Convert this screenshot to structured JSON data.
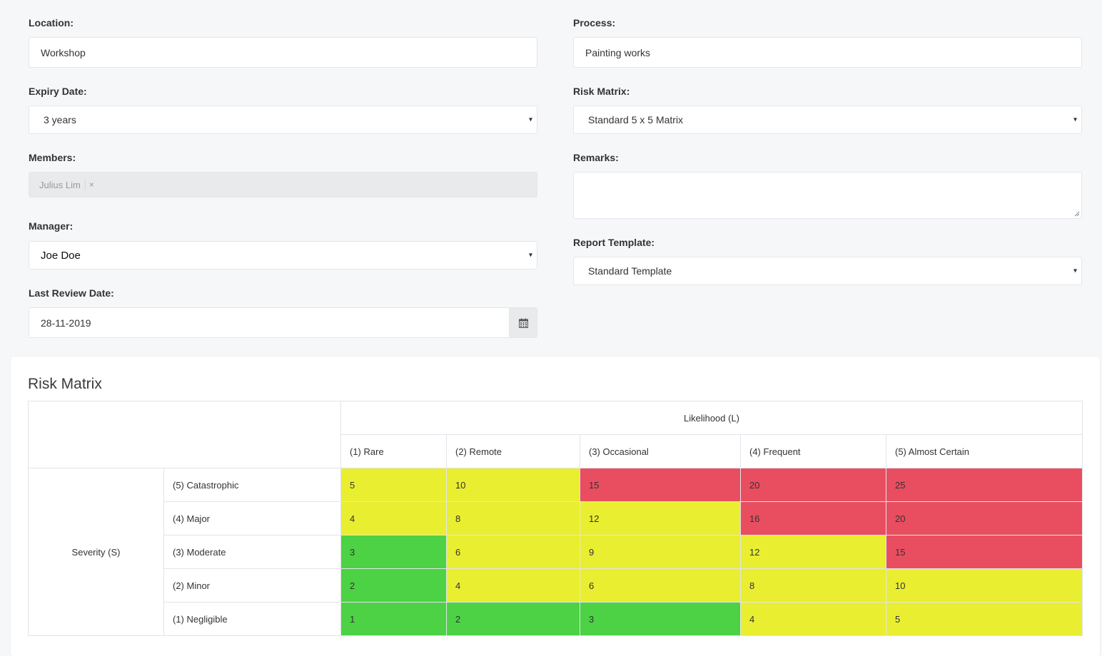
{
  "form": {
    "location": {
      "label": "Location:",
      "value": "Workshop"
    },
    "process": {
      "label": "Process:",
      "value": "Painting works"
    },
    "expiry": {
      "label": "Expiry Date:",
      "value": "3 years"
    },
    "risk_matrix": {
      "label": "Risk Matrix:",
      "value": "Standard 5 x 5 Matrix"
    },
    "members": {
      "label": "Members:",
      "tags": [
        "Julius Lim"
      ],
      "remove_symbol": "×"
    },
    "remarks": {
      "label": "Remarks:",
      "value": ""
    },
    "manager": {
      "label": "Manager:",
      "value": "Joe Doe"
    },
    "report_template": {
      "label": "Report Template:",
      "value": "Standard Template"
    },
    "last_review": {
      "label": "Last Review Date:",
      "value": "28-11-2019"
    },
    "caret_symbol": "▾"
  },
  "matrix": {
    "title": "Risk Matrix",
    "likelihood_header": "Likelihood (L)",
    "severity_header": "Severity (S)",
    "likelihood": [
      "(1) Rare",
      "(2) Remote",
      "(3) Occasional",
      "(4) Frequent",
      "(5) Almost Certain"
    ],
    "rows": [
      {
        "label": "(5) Catastrophic",
        "cells": [
          {
            "value": "5",
            "level": "medium"
          },
          {
            "value": "10",
            "level": "medium"
          },
          {
            "value": "15",
            "level": "high"
          },
          {
            "value": "20",
            "level": "high"
          },
          {
            "value": "25",
            "level": "high"
          }
        ]
      },
      {
        "label": "(4) Major",
        "cells": [
          {
            "value": "4",
            "level": "medium"
          },
          {
            "value": "8",
            "level": "medium"
          },
          {
            "value": "12",
            "level": "medium"
          },
          {
            "value": "16",
            "level": "high"
          },
          {
            "value": "20",
            "level": "high"
          }
        ]
      },
      {
        "label": "(3) Moderate",
        "cells": [
          {
            "value": "3",
            "level": "low"
          },
          {
            "value": "6",
            "level": "medium"
          },
          {
            "value": "9",
            "level": "medium"
          },
          {
            "value": "12",
            "level": "medium"
          },
          {
            "value": "15",
            "level": "high"
          }
        ]
      },
      {
        "label": "(2) Minor",
        "cells": [
          {
            "value": "2",
            "level": "low"
          },
          {
            "value": "4",
            "level": "medium"
          },
          {
            "value": "6",
            "level": "medium"
          },
          {
            "value": "8",
            "level": "medium"
          },
          {
            "value": "10",
            "level": "medium"
          }
        ]
      },
      {
        "label": "(1) Negligible",
        "cells": [
          {
            "value": "1",
            "level": "low"
          },
          {
            "value": "2",
            "level": "low"
          },
          {
            "value": "3",
            "level": "low"
          },
          {
            "value": "4",
            "level": "medium"
          },
          {
            "value": "5",
            "level": "medium"
          }
        ]
      }
    ],
    "colors": {
      "low": "#4cd244",
      "medium": "#e9ee30",
      "high": "#e84e60"
    }
  },
  "icons": {
    "calendar": "calendar-icon"
  }
}
